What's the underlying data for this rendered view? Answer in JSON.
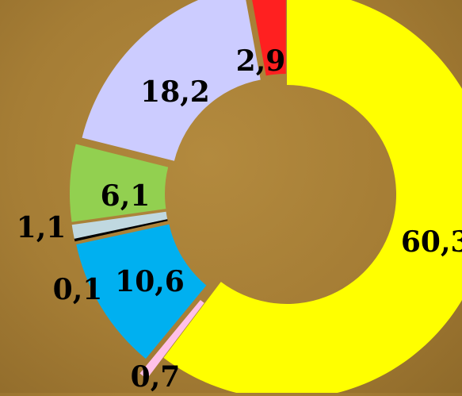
{
  "chart_data": {
    "type": "pie",
    "donut": true,
    "title": "",
    "slices": [
      {
        "label": "60,3",
        "value": 60.3,
        "color": "#ffff00"
      },
      {
        "label": "0,7",
        "value": 0.7,
        "color": "#ffc0e8"
      },
      {
        "label": "10,6",
        "value": 10.6,
        "color": "#00b0f0"
      },
      {
        "label": "0,1",
        "value": 0.1,
        "color": "#000000"
      },
      {
        "label": "1,1",
        "value": 1.1,
        "color": "#c0d8e0"
      },
      {
        "label": "6,1",
        "value": 6.1,
        "color": "#92d050"
      },
      {
        "label": "18,2",
        "value": 18.2,
        "color": "#ccccff"
      },
      {
        "label": "2,9",
        "value": 2.9,
        "color": "#ff2020"
      }
    ],
    "legend": "none"
  }
}
